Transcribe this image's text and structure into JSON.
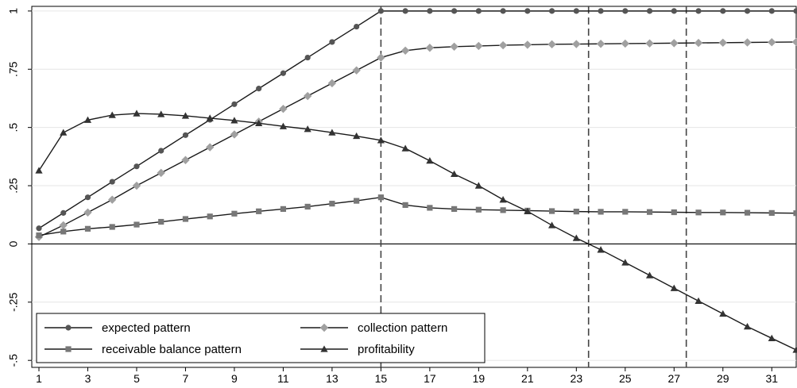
{
  "chart_data": {
    "type": "line",
    "x": [
      1,
      2,
      3,
      4,
      5,
      6,
      7,
      8,
      9,
      10,
      11,
      12,
      13,
      14,
      15,
      16,
      17,
      18,
      19,
      20,
      21,
      22,
      23,
      24,
      25,
      26,
      27,
      28,
      29,
      30,
      31,
      32
    ],
    "x_ticks": [
      1,
      3,
      5,
      7,
      9,
      11,
      13,
      15,
      17,
      19,
      21,
      23,
      25,
      27,
      29,
      31
    ],
    "y_ticks": [
      -0.5,
      -0.25,
      0,
      0.25,
      0.5,
      0.75,
      1
    ],
    "y_tick_labels": [
      "-.5",
      "-.25",
      "0",
      ".25",
      ".5",
      ".75",
      "1"
    ],
    "xlim": [
      1,
      32
    ],
    "ylim": [
      -0.53,
      1.02
    ],
    "reference_lines": {
      "horizontal": [
        0
      ],
      "vertical_dashed": [
        15,
        23.5,
        27.5
      ]
    },
    "legend": {
      "placement": "bottom-left",
      "columns": 2
    },
    "series": [
      {
        "name": "expected pattern",
        "marker": "circle",
        "marker_color": "#555555",
        "values": [
          0.067,
          0.133,
          0.2,
          0.267,
          0.333,
          0.4,
          0.467,
          0.533,
          0.6,
          0.667,
          0.733,
          0.8,
          0.867,
          0.933,
          1,
          1,
          1,
          1,
          1,
          1,
          1,
          1,
          1,
          1,
          1,
          1,
          1,
          1,
          1,
          1,
          1,
          1
        ]
      },
      {
        "name": "collection pattern",
        "marker": "diamond",
        "marker_color": "#a0a0a0",
        "values": [
          0.03,
          0.08,
          0.135,
          0.19,
          0.25,
          0.305,
          0.36,
          0.415,
          0.47,
          0.525,
          0.58,
          0.635,
          0.69,
          0.745,
          0.8,
          0.83,
          0.842,
          0.847,
          0.85,
          0.853,
          0.855,
          0.857,
          0.858,
          0.859,
          0.86,
          0.861,
          0.862,
          0.863,
          0.864,
          0.865,
          0.866,
          0.867
        ]
      },
      {
        "name": "receivable balance pattern",
        "marker": "square",
        "marker_color": "#777777",
        "values": [
          0.037,
          0.053,
          0.065,
          0.073,
          0.083,
          0.095,
          0.107,
          0.118,
          0.13,
          0.14,
          0.15,
          0.16,
          0.173,
          0.185,
          0.2,
          0.167,
          0.155,
          0.15,
          0.147,
          0.145,
          0.143,
          0.141,
          0.139,
          0.138,
          0.138,
          0.137,
          0.136,
          0.135,
          0.135,
          0.134,
          0.133,
          0.132
        ]
      },
      {
        "name": "profitability",
        "marker": "triangle",
        "marker_color": "#333333",
        "values": [
          0.315,
          0.478,
          0.532,
          0.553,
          0.56,
          0.557,
          0.55,
          0.54,
          0.53,
          0.518,
          0.505,
          0.493,
          0.478,
          0.463,
          0.445,
          0.41,
          0.357,
          0.3,
          0.25,
          0.19,
          0.14,
          0.08,
          0.025,
          -0.025,
          -0.08,
          -0.135,
          -0.19,
          -0.245,
          -0.3,
          -0.355,
          -0.405,
          -0.455
        ]
      }
    ]
  }
}
